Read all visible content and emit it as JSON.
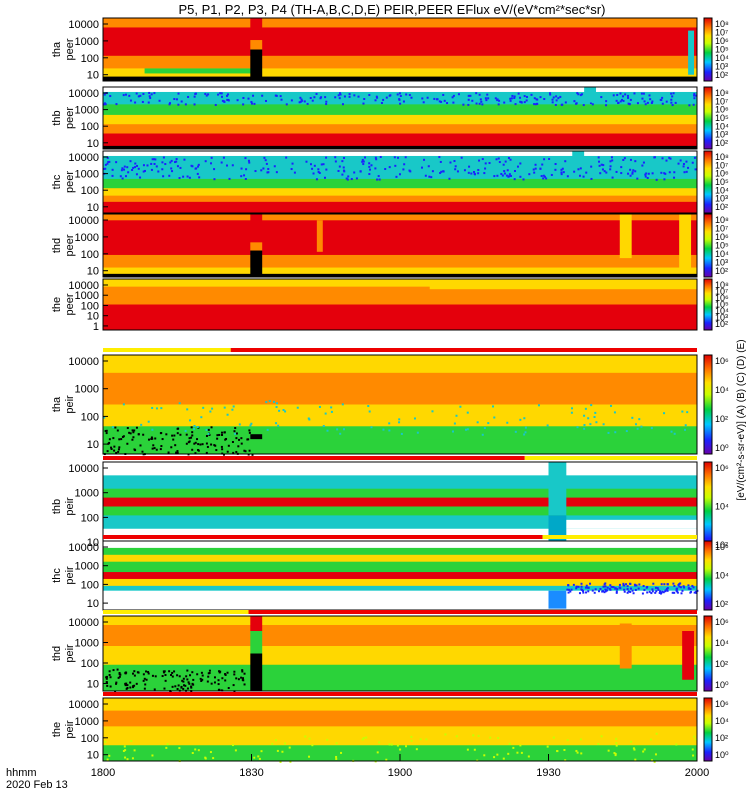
{
  "title": "P5, P1, P2, P3, P4 (TH-A,B,C,D,E) PEIR,PEER EFlux eV/(eV*cm²*sec*sr)",
  "colorbar_label": "[eV/(cm²-s-sr-eV)] (A) (B) (C) (D) (E)",
  "colors": {
    "high": "#e4000c",
    "mid_high": "#ff8a00",
    "mid": "#ffd800",
    "mid_low": "#2bd23a",
    "low": "#18c8c8",
    "floor": "#000000",
    "bar_red": "#ee0000",
    "bar_yellow": "#ffee00"
  },
  "x_axis": {
    "ticks": [
      "1800",
      "1830",
      "1900",
      "1930",
      "2000"
    ],
    "label_line1": "hhmm",
    "label_line2": "2020 Feb 13"
  },
  "chart_data": {
    "type": "heatmap",
    "x_range": [
      "18:00",
      "20:00"
    ],
    "x_ticks": [
      "1800",
      "1830",
      "1900",
      "1930",
      "2000"
    ],
    "panels": [
      {
        "ylabel_1": "tha",
        "ylabel_2": "peer",
        "y_ticks": [
          "10000",
          "1000",
          "100",
          "10"
        ],
        "colorbar_ticks": [
          "10⁸",
          "10⁷",
          "10⁶",
          "10⁵",
          "10⁴",
          "10³",
          "10²"
        ]
      },
      {
        "ylabel_1": "thb",
        "ylabel_2": "peer",
        "y_ticks": [
          "10000",
          "1000",
          "100",
          "10"
        ],
        "colorbar_ticks": [
          "10⁸",
          "10⁷",
          "10⁶",
          "10⁵",
          "10⁴",
          "10³",
          "10²"
        ]
      },
      {
        "ylabel_1": "thc",
        "ylabel_2": "peer",
        "y_ticks": [
          "10000",
          "1000",
          "100",
          "10"
        ],
        "colorbar_ticks": [
          "10⁸",
          "10⁷",
          "10⁶",
          "10⁵",
          "10⁴",
          "10³",
          "10²"
        ]
      },
      {
        "ylabel_1": "thd",
        "ylabel_2": "peer",
        "y_ticks": [
          "10000",
          "1000",
          "100",
          "10"
        ],
        "colorbar_ticks": [
          "10⁸",
          "10⁷",
          "10⁶",
          "10⁵",
          "10⁴",
          "10³",
          "10²"
        ]
      },
      {
        "ylabel_1": "the",
        "ylabel_2": "peer",
        "y_ticks": [
          "10000",
          "1000",
          "100",
          "10",
          "1"
        ],
        "colorbar_ticks": [
          "10⁸",
          "10⁷",
          "10⁶",
          "10⁵",
          "10⁴",
          "10³",
          "10²"
        ]
      },
      {
        "ylabel_1": "tha",
        "ylabel_2": "peir",
        "y_ticks": [
          "10000",
          "1000",
          "100",
          "10"
        ],
        "colorbar_ticks": [
          "10⁶",
          "10⁴",
          "10²",
          "10⁰"
        ]
      },
      {
        "ylabel_1": "thb",
        "ylabel_2": "peir",
        "y_ticks": [
          "10000",
          "1000",
          "100",
          "10"
        ],
        "colorbar_ticks": [
          "10⁶",
          "10⁴",
          "10²"
        ]
      },
      {
        "ylabel_1": "thc",
        "ylabel_2": "peir",
        "y_ticks": [
          "10000",
          "1000",
          "100",
          "10"
        ],
        "colorbar_ticks": [
          "10⁶",
          "10⁴",
          "10²"
        ]
      },
      {
        "ylabel_1": "thd",
        "ylabel_2": "peir",
        "y_ticks": [
          "10000",
          "1000",
          "100",
          "10"
        ],
        "colorbar_ticks": [
          "10⁶",
          "10⁴",
          "10²",
          "10⁰"
        ]
      },
      {
        "ylabel_1": "the",
        "ylabel_2": "peir",
        "y_ticks": [
          "10000",
          "1000",
          "100",
          "10"
        ],
        "colorbar_ticks": [
          "10⁶",
          "10⁴",
          "10²",
          "10⁰"
        ]
      }
    ]
  }
}
